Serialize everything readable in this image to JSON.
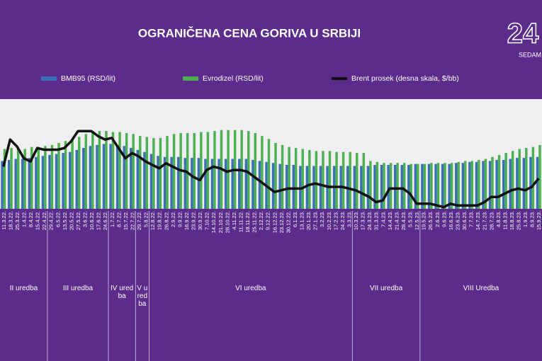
{
  "chart_data": {
    "type": "bar-line",
    "title": "OGRANIČENA CENA GORIVA U SRBIJI",
    "logo": {
      "number": "24",
      "text": "SEDAM"
    },
    "categories": [
      "11.3.22.",
      "18.3.22.",
      "25.3.22.",
      "1.4.22.",
      "8.4.22.",
      "15.4.22.",
      "22.4.22.",
      "29.4.22.",
      "6.5.22.",
      "13.5.22.",
      "20.5.22.",
      "27.5.22.",
      "3.6.22.",
      "10.6.22.",
      "17.6.22.",
      "24.6.22.",
      "1.7.22.",
      "8.7.22.",
      "15.7.22.",
      "22.7.22.",
      "29.7.22.",
      "5.8.22.",
      "12.8.22.",
      "19.8.22.",
      "26.8.22.",
      "2.9.22.",
      "9.9.22.",
      "16.9.22.",
      "23.9.22.",
      "30.9.22.",
      "7.10.22.",
      "14.10.22.",
      "21.10.22.",
      "28.10.22.",
      "4.11.22.",
      "11.11.22.",
      "18.11.22.",
      "25.11.22.",
      "2.12.22.",
      "9.12.22.",
      "16.12.22.",
      "23.12.22.",
      "30.12.22.",
      "6.1.23.",
      "13.1.23.",
      "20.1.23.",
      "27.1.23.",
      "3.2.23.",
      "10.2.23.",
      "17.2.23.",
      "24.2.23.",
      "3.3.23.",
      "10.3.23.",
      "17.3.23.",
      "24.3.23.",
      "31.3.23.",
      "7.4.23.",
      "14.4.23.",
      "21.4.23.",
      "28.4.23.",
      "5.5.23.",
      "12.5.23.",
      "19.5.23.",
      "26.5.23.",
      "2.6.23.",
      "9.6.23.",
      "16.6.23.",
      "23.6.23.",
      "30.6.23.",
      "7.7.23.",
      "14.7.23.",
      "21.7.23.",
      "28.7.23.",
      "4.8.23.",
      "11.8.23.",
      "18.8.23.",
      "25.8.23.",
      "1.9.23.",
      "8.9.23.",
      "15.9.23."
    ],
    "series": [
      {
        "name": "BMB95 (RSD/lit)",
        "color": "#3b6fb6",
        "type": "bar",
        "values": [
          168,
          169,
          170,
          170,
          171,
          172,
          173,
          174,
          175,
          176,
          177,
          179,
          181,
          183,
          184,
          185,
          185,
          184,
          183,
          181,
          179,
          177,
          175,
          173,
          172,
          172,
          172,
          171,
          171,
          171,
          170,
          170,
          170,
          170,
          170,
          170,
          170,
          169,
          168,
          167,
          166,
          165,
          164,
          164,
          163,
          163,
          163,
          163,
          163,
          163,
          163,
          163,
          163,
          163,
          163,
          164,
          164,
          164,
          164,
          164,
          164,
          165,
          165,
          165,
          165,
          165,
          165,
          166,
          166,
          167,
          167,
          168,
          168,
          169,
          169,
          170,
          171,
          171,
          172,
          172
        ]
      },
      {
        "name": "Evrodizel (RSD/lit)",
        "color": "#4caf50",
        "type": "bar",
        "values": [
          180,
          181,
          181,
          180,
          182,
          182,
          183,
          184,
          186,
          188,
          190,
          192,
          195,
          197,
          198,
          198,
          197,
          197,
          196,
          195,
          193,
          192,
          191,
          191,
          193,
          195,
          196,
          196,
          196,
          197,
          197,
          198,
          199,
          199,
          199,
          199,
          198,
          196,
          193,
          190,
          186,
          184,
          182,
          181,
          180,
          179,
          178,
          178,
          178,
          177,
          177,
          177,
          176,
          176,
          168,
          167,
          166,
          166,
          166,
          166,
          165,
          165,
          165,
          166,
          166,
          166,
          166,
          167,
          168,
          168,
          169,
          170,
          172,
          174,
          176,
          178,
          180,
          181,
          182,
          184
        ]
      },
      {
        "name": "Brent prosek  (desna skala, $/bb)",
        "color": "#111111",
        "type": "line",
        "axis": "y2",
        "values": [
          85,
          101,
          97,
          90,
          88,
          96,
          95,
          95,
          95,
          96,
          100,
          106,
          106,
          106,
          103,
          101,
          102,
          96,
          90,
          93,
          91,
          88,
          86,
          84,
          87,
          85,
          83,
          82,
          79,
          77,
          83,
          85,
          84,
          82,
          83,
          83,
          82,
          79,
          76,
          73,
          70,
          71,
          72,
          72,
          72,
          74,
          75,
          74,
          73,
          73,
          73,
          72,
          71,
          69,
          67,
          64,
          65,
          72,
          72,
          72,
          69,
          63,
          63,
          63,
          62,
          61,
          63,
          62,
          62,
          62,
          62,
          64,
          67,
          67,
          69,
          71,
          72,
          71,
          73,
          78
        ]
      }
    ],
    "ylim": [
      120,
      230
    ],
    "y2lim": [
      60,
      125
    ],
    "periods": [
      "II uredba",
      "III uredba",
      "IV uredba",
      "V uredba",
      "VI uredba",
      "VII uredba",
      "VIII Uredba"
    ]
  }
}
